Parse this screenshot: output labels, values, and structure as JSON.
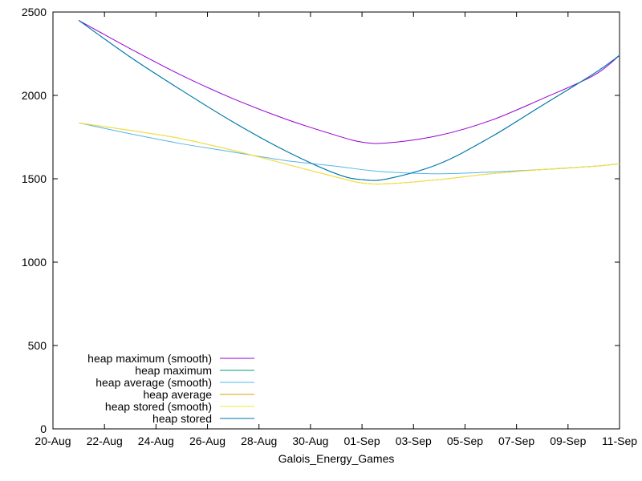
{
  "chart_data": {
    "type": "line",
    "title": "",
    "xlabel": "Galois_Energy_Games",
    "ylabel": "",
    "x_tick_labels": [
      "20-Aug",
      "22-Aug",
      "24-Aug",
      "26-Aug",
      "28-Aug",
      "30-Aug",
      "01-Sep",
      "03-Sep",
      "05-Sep",
      "07-Sep",
      "09-Sep",
      "11-Sep"
    ],
    "x_tick_dates": [
      "2024-08-20",
      "2024-08-22",
      "2024-08-24",
      "2024-08-26",
      "2024-08-28",
      "2024-08-30",
      "2024-09-01",
      "2024-09-03",
      "2024-09-05",
      "2024-09-07",
      "2024-09-09",
      "2024-09-11"
    ],
    "xlim": [
      "2024-08-20",
      "2024-09-11"
    ],
    "y_ticks": [
      0,
      500,
      1000,
      1500,
      2000,
      2500
    ],
    "ylim": [
      0,
      2500
    ],
    "grid": false,
    "legend_position": "bottom-left",
    "x": [
      "2024-08-21",
      "2024-08-23",
      "2024-08-25",
      "2024-08-27",
      "2024-08-29",
      "2024-08-31",
      "2024-09-01",
      "2024-09-02",
      "2024-09-04",
      "2024-09-06",
      "2024-09-08",
      "2024-09-10",
      "2024-09-11"
    ],
    "series": [
      {
        "name": "heap maximum (smooth)",
        "color": "#9400d3",
        "values": [
          2450,
          2280,
          2120,
          1980,
          1860,
          1760,
          1720,
          1715,
          1760,
          1850,
          1980,
          2120,
          2240
        ]
      },
      {
        "name": "heap maximum",
        "color": "#009e73",
        "values": [
          2450,
          2230,
          2030,
          1840,
          1670,
          1530,
          1495,
          1500,
          1590,
          1750,
          1940,
          2130,
          2240
        ]
      },
      {
        "name": "heap average (smooth)",
        "color": "#56b4e9",
        "values": [
          1835,
          1770,
          1710,
          1660,
          1610,
          1575,
          1555,
          1540,
          1530,
          1540,
          1555,
          1575,
          1590
        ]
      },
      {
        "name": "heap average",
        "color": "#e69f00",
        "values": [
          1835,
          1790,
          1740,
          1670,
          1590,
          1510,
          1475,
          1470,
          1495,
          1530,
          1555,
          1575,
          1590
        ]
      },
      {
        "name": "heap stored (smooth)",
        "color": "#f0e442",
        "values": [
          1835,
          1790,
          1740,
          1670,
          1590,
          1510,
          1475,
          1470,
          1495,
          1530,
          1555,
          1575,
          1590
        ]
      },
      {
        "name": "heap stored",
        "color": "#0072b2",
        "values": [
          2450,
          2230,
          2030,
          1840,
          1670,
          1530,
          1495,
          1500,
          1590,
          1750,
          1940,
          2130,
          2240
        ]
      }
    ]
  }
}
